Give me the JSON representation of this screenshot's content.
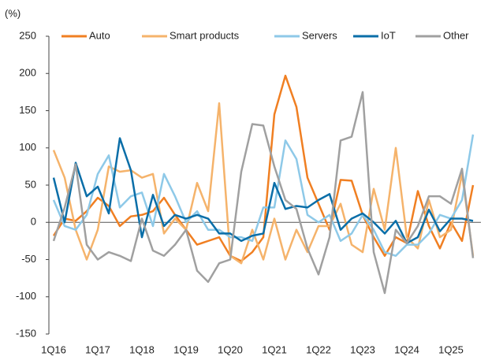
{
  "chart_data": {
    "type": "line",
    "y_label": "(%)",
    "categories": [
      "1Q16",
      null,
      null,
      null,
      "1Q17",
      null,
      null,
      null,
      "1Q18",
      null,
      null,
      null,
      "1Q19",
      null,
      null,
      null,
      "1Q20",
      null,
      null,
      null,
      "1Q21",
      null,
      null,
      null,
      "1Q22",
      null,
      null,
      null,
      "1Q23",
      null,
      null,
      null,
      "1Q24",
      null,
      null,
      null,
      "1Q25",
      null,
      null
    ],
    "series": [
      {
        "name": "Auto",
        "color": "#f07f22",
        "values": [
          -18,
          5,
          2,
          15,
          33,
          22,
          -5,
          8,
          10,
          15,
          33,
          10,
          -10,
          -30,
          -25,
          -20,
          -45,
          -52,
          -40,
          -20,
          145,
          197,
          155,
          60,
          25,
          -10,
          57,
          56,
          10,
          -20,
          -45,
          -20,
          -28,
          42,
          -5,
          -35,
          0,
          -25,
          50
        ]
      },
      {
        "name": "Smart products",
        "color": "#f5b36b",
        "values": [
          97,
          60,
          -10,
          -50,
          -10,
          75,
          68,
          70,
          60,
          65,
          -15,
          5,
          -10,
          53,
          15,
          160,
          -45,
          -55,
          -10,
          -50,
          5,
          -50,
          -10,
          -40,
          -5,
          -5,
          25,
          -30,
          -40,
          45,
          -10,
          100,
          -20,
          -35,
          30,
          -20,
          -10,
          65,
          -45
        ]
      },
      {
        "name": "Servers",
        "color": "#8ec9e8",
        "values": [
          30,
          -5,
          -10,
          10,
          65,
          90,
          20,
          35,
          40,
          -5,
          65,
          35,
          0,
          15,
          -10,
          -10,
          -20,
          -20,
          -25,
          20,
          20,
          110,
          85,
          10,
          0,
          10,
          -25,
          -15,
          10,
          -10,
          -40,
          -45,
          -30,
          -30,
          -15,
          10,
          5,
          30,
          118
        ]
      },
      {
        "name": "IoT",
        "color": "#0a6ea8",
        "values": [
          60,
          0,
          80,
          35,
          48,
          12,
          113,
          70,
          -20,
          37,
          -5,
          10,
          5,
          10,
          5,
          -15,
          -15,
          -25,
          -18,
          -15,
          53,
          18,
          22,
          20,
          30,
          38,
          -10,
          5,
          12,
          0,
          -15,
          2,
          -28,
          -20,
          17,
          -12,
          5,
          5,
          2
        ]
      },
      {
        "name": "Other",
        "color": "#a0a0a0",
        "values": [
          -25,
          20,
          78,
          -30,
          -50,
          -40,
          -45,
          -52,
          5,
          -38,
          -45,
          -30,
          -10,
          -65,
          -80,
          -55,
          -50,
          68,
          132,
          130,
          75,
          30,
          18,
          -35,
          -70,
          -20,
          110,
          115,
          175,
          -40,
          -95,
          -10,
          -28,
          -5,
          35,
          35,
          25,
          72,
          -48
        ]
      }
    ],
    "ylim": [
      -150,
      250
    ],
    "yticks": [
      -150,
      -100,
      -50,
      0,
      50,
      100,
      150,
      200,
      250
    ],
    "grid": false,
    "legend": "top"
  }
}
